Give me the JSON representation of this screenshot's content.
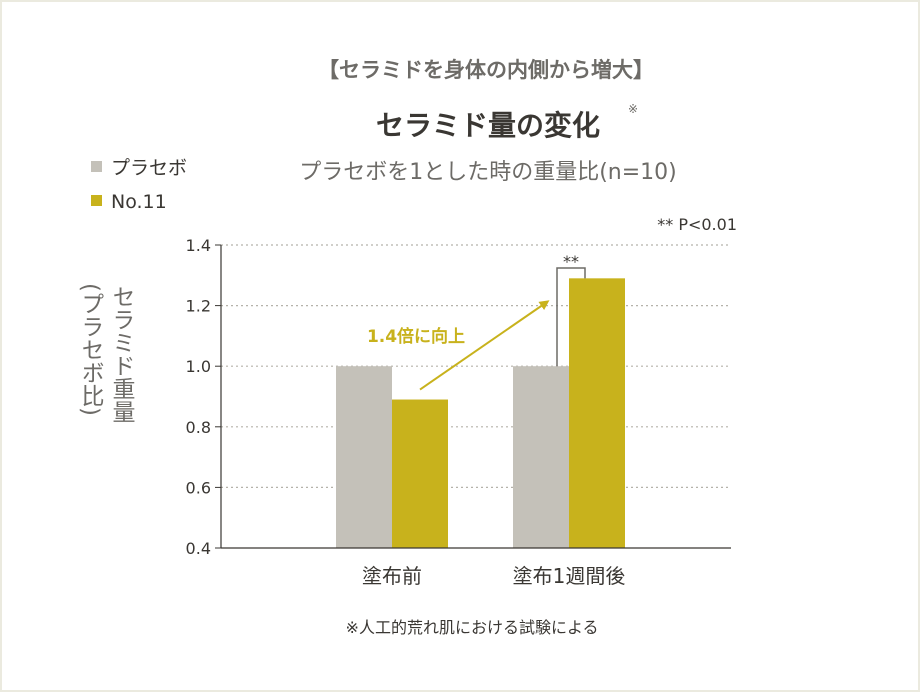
{
  "colors": {
    "placebo": "#c4c1b9",
    "no11": "#c8b21c",
    "grid": "#b5b2aa",
    "axis": "#3a3733",
    "bracket": "#6d6b67"
  },
  "header": {
    "supertitle": "【セラミドを身体の内側から増大】",
    "title": "セラミド量の変化",
    "title_mark": "※",
    "subtitle": "プラセボを1とした時の重量比(n=10)"
  },
  "legend": {
    "items": [
      "プラセボ",
      "No.11"
    ]
  },
  "significance_note": "** P<0.01",
  "significance_marker": "**",
  "annotation": "1.4倍に向上",
  "footnote": "※人工的荒れ肌における試験による",
  "chart_data": {
    "type": "bar",
    "categories": [
      "塗布前",
      "塗布1週間後"
    ],
    "series": [
      {
        "name": "プラセボ",
        "values": [
          1.0,
          1.0
        ]
      },
      {
        "name": "No.11",
        "values": [
          0.89,
          1.29
        ]
      }
    ],
    "ylabel": "セラミド重量(プラセボ比)",
    "ylabel_main": "セラミド重量",
    "ylabel_paren": "(プラセボ比)",
    "ylim": [
      0.4,
      1.4
    ],
    "yticks": [
      "0.4",
      "0.6",
      "0.8",
      "1.0",
      "1.2",
      "1.4"
    ],
    "grid": true,
    "legend_position": "top-left"
  }
}
